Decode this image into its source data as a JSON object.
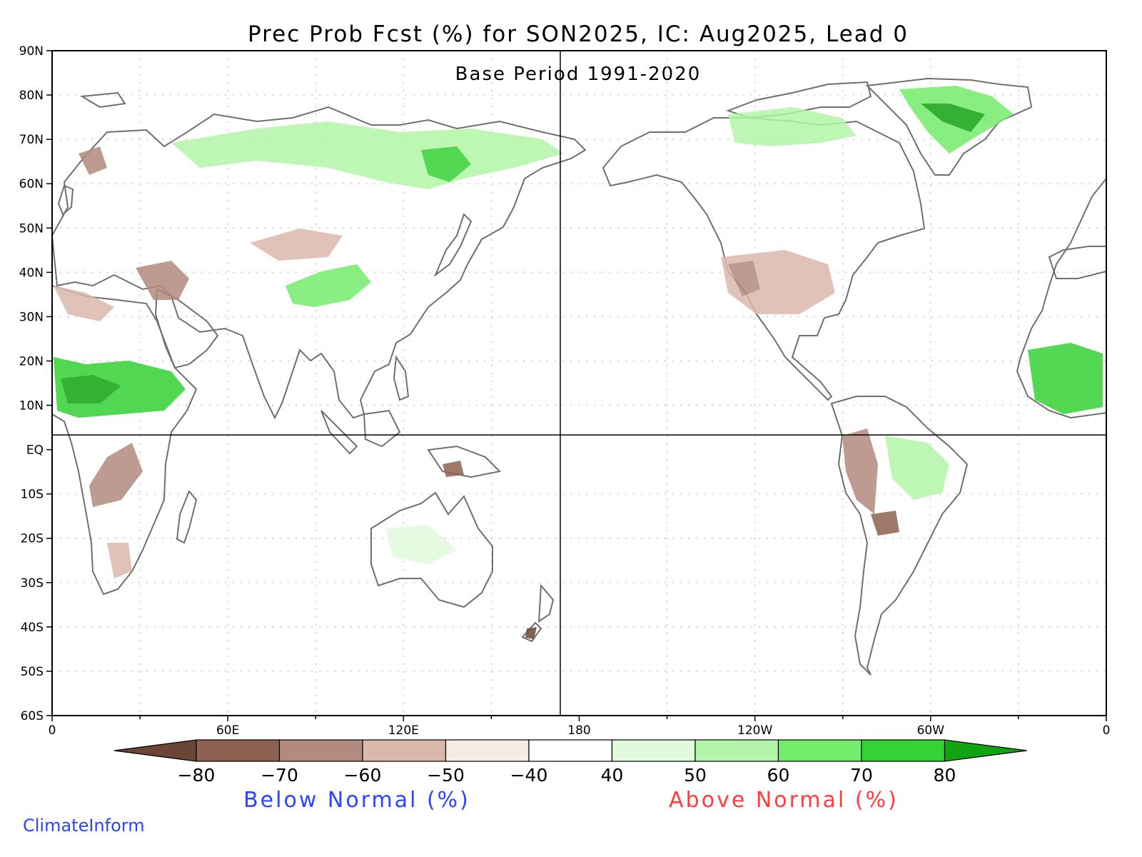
{
  "title": "Prec Prob Fcst (%) for SON2025, IC: Aug2025, Lead 0",
  "subtitle": "Base Period 1991-2020",
  "lat_labels": [
    "90N",
    "80N",
    "70N",
    "60N",
    "50N",
    "40N",
    "30N",
    "20N",
    "10N",
    "EQ",
    "10S",
    "20S",
    "30S",
    "40S",
    "50S",
    "60S"
  ],
  "lon_labels": [
    "0",
    "60E",
    "120E",
    "180",
    "120W",
    "60W",
    "0"
  ],
  "colorbar": {
    "labels": [
      "-80",
      "-70",
      "-60",
      "-50",
      "-40",
      "40",
      "50",
      "60",
      "70",
      "80"
    ],
    "colors": [
      "#6b4535",
      "#8c6152",
      "#b38a7e",
      "#dbb8ac",
      "#f7ece4",
      "#ffffff",
      "#e1fadb",
      "#b3f5a8",
      "#74ec6c",
      "#35d135",
      "#11a311"
    ],
    "below_label": "Below Normal (%)",
    "above_label": "Above Normal (%)",
    "below_color": "#2b44ff",
    "above_color": "#ff3b3b"
  },
  "brand": "ClimateInform",
  "brand_color": "#2b44ff",
  "colors": {
    "coastline": "#6f6f6f",
    "lakes": "#000000",
    "grid": "#bdbdbd"
  }
}
